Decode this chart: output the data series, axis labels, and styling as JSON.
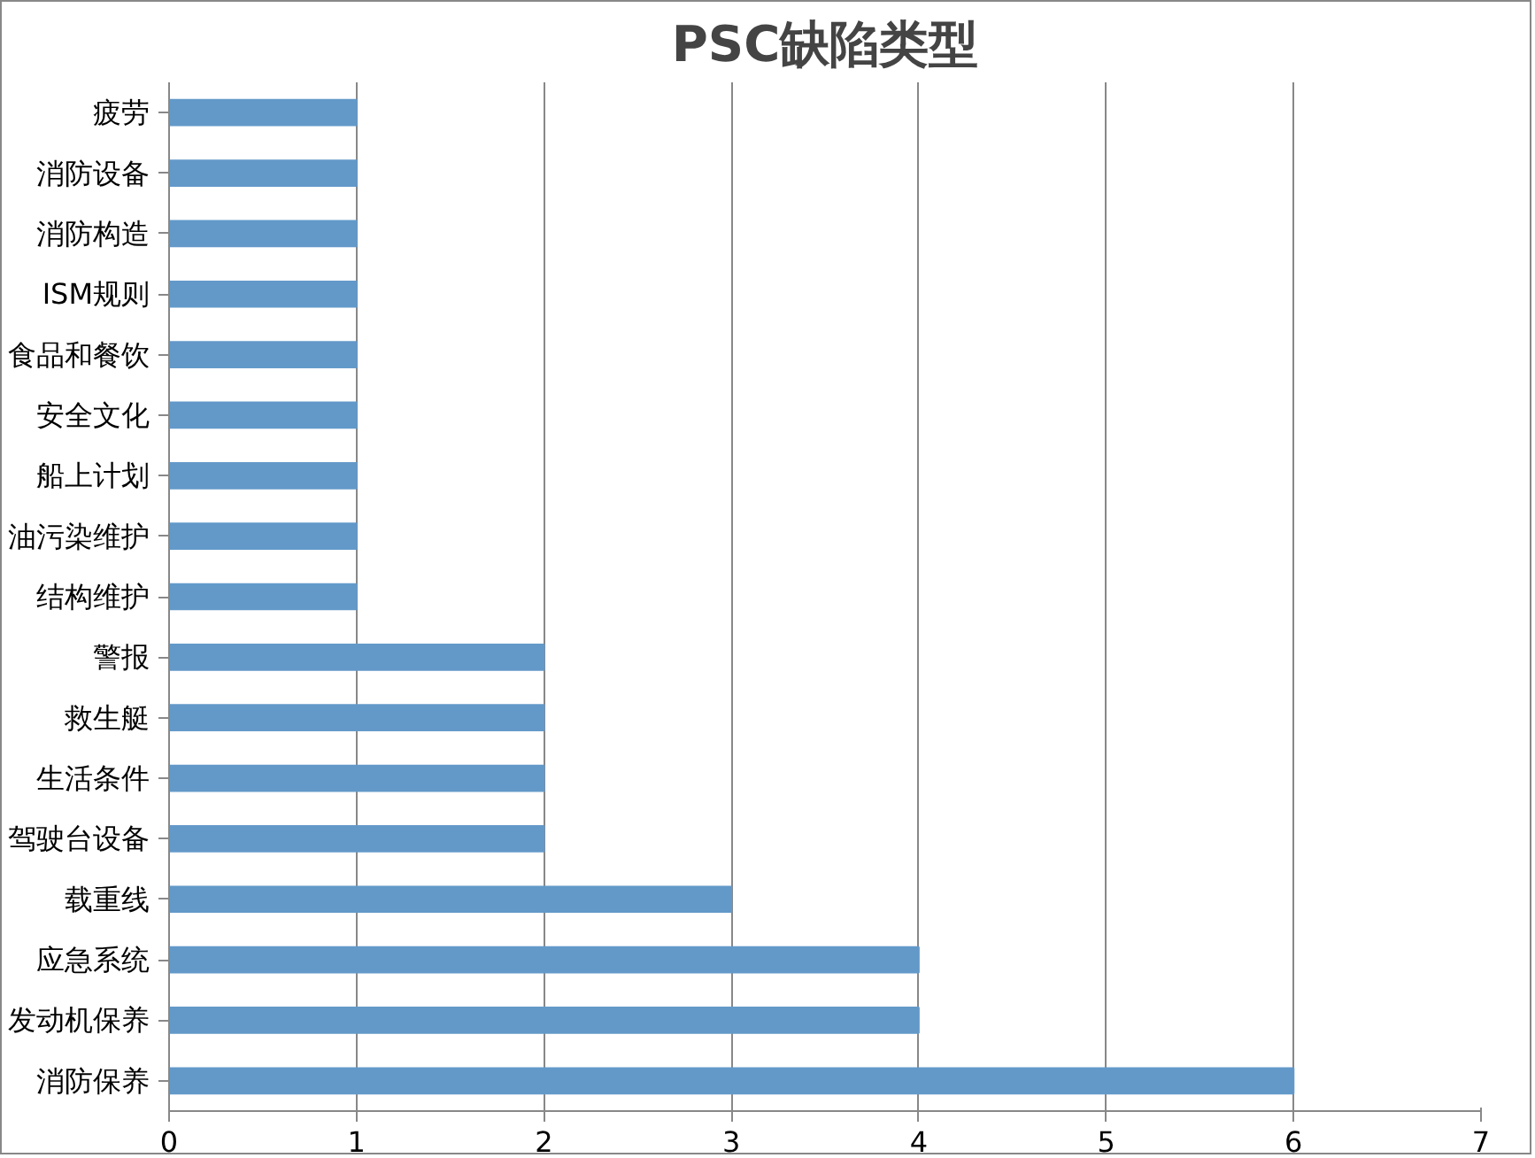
{
  "chart_data": {
    "type": "bar",
    "orientation": "horizontal",
    "title": "PSC缺陷类型",
    "categories": [
      "疲劳",
      "消防设备",
      "消防构造",
      "ISM规则",
      "食品和餐饮",
      "安全文化",
      "船上计划",
      "油污染维护",
      "结构维护",
      "警报",
      "救生艇",
      "生活条件",
      "驾驶台设备",
      "载重线",
      "应急系统",
      "发动机保养",
      "消防保养"
    ],
    "values": [
      1,
      1,
      1,
      1,
      1,
      1,
      1,
      1,
      1,
      2,
      2,
      2,
      2,
      3,
      4,
      4,
      6
    ],
    "color": "#6399c9",
    "xlim": [
      0,
      7
    ],
    "xticks": [
      0,
      1,
      2,
      3,
      4,
      5,
      6,
      7
    ],
    "grid": "x"
  }
}
